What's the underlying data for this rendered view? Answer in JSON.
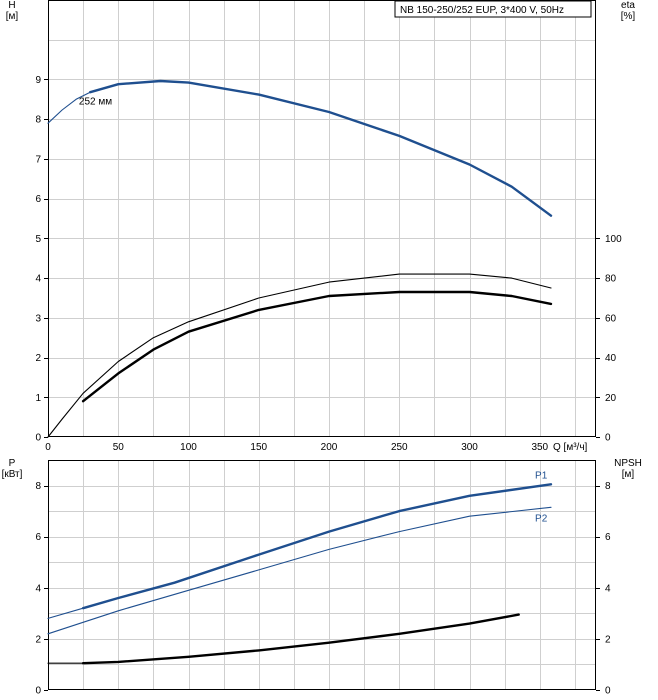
{
  "colors": {
    "blue": "#1f4f8f",
    "black": "#000000",
    "grid": "#cfcfcf",
    "frame": "#000000"
  },
  "legend_box": "NB 150-250/252 EUP, 3*400 V, 50Hz",
  "chart_data": [
    {
      "type": "line",
      "title": "",
      "xlabel": "Q [м³/ч]",
      "xlim": [
        0,
        390
      ],
      "x_ticks": [
        0,
        50,
        100,
        150,
        200,
        250,
        300,
        350
      ],
      "y_left": {
        "label": "H",
        "unit": "[м]",
        "lim": [
          0,
          11
        ],
        "ticks": [
          0,
          1,
          2,
          3,
          4,
          5,
          6,
          7,
          8,
          9
        ]
      },
      "y_right": {
        "label": "eta",
        "unit": "[%]",
        "lim": [
          0,
          220
        ],
        "ticks": [
          0,
          20,
          40,
          60,
          80,
          100
        ]
      },
      "grid": true,
      "series": [
        {
          "name": "252 мм",
          "axis": "left",
          "color": "#1f4f8f",
          "style": "thin",
          "x": [
            0,
            10,
            20,
            30
          ],
          "y": [
            7.9,
            8.23,
            8.5,
            8.68
          ]
        },
        {
          "name": "252 мм",
          "axis": "left",
          "color": "#1f4f8f",
          "style": "thick",
          "x": [
            30,
            50,
            80,
            100,
            150,
            200,
            250,
            300,
            330,
            358
          ],
          "y": [
            8.68,
            8.88,
            8.96,
            8.92,
            8.62,
            8.18,
            7.58,
            6.86,
            6.3,
            5.57
          ]
        },
        {
          "name": "",
          "axis": "right",
          "color": "#000000",
          "style": "thin",
          "x": [
            0,
            10,
            25,
            50,
            75,
            100,
            150,
            200,
            250,
            300,
            330,
            358
          ],
          "y": [
            0,
            9,
            22,
            38,
            50,
            58,
            70,
            78,
            82,
            82,
            80,
            75
          ]
        },
        {
          "name": "",
          "axis": "right",
          "color": "#000000",
          "style": "thick",
          "x": [
            25,
            50,
            75,
            100,
            150,
            200,
            250,
            300,
            330,
            358
          ],
          "y": [
            18,
            32,
            44,
            53,
            64,
            71,
            73,
            73,
            71,
            67
          ]
        }
      ],
      "annotations": [
        {
          "text": "252 мм",
          "x": 22,
          "y": 8.45
        }
      ]
    },
    {
      "type": "line",
      "title": "",
      "xlabel": "",
      "xlim": [
        0,
        390
      ],
      "x_ticks": [
        0,
        50,
        100,
        150,
        200,
        250,
        300,
        350
      ],
      "y_left": {
        "label": "P",
        "unit": "[кВт]",
        "lim": [
          0,
          9
        ],
        "ticks": [
          0,
          2,
          4,
          6,
          8
        ]
      },
      "y_right": {
        "label": "NPSH",
        "unit": "[м]",
        "lim": [
          0,
          9
        ],
        "ticks": [
          0,
          2,
          4,
          6,
          8
        ]
      },
      "grid": true,
      "series": [
        {
          "name": "",
          "axis": "left",
          "color": "#1f4f8f",
          "style": "thin",
          "x": [
            0,
            25
          ],
          "y": [
            2.8,
            3.2
          ]
        },
        {
          "name": "P1",
          "axis": "left",
          "color": "#1f4f8f",
          "style": "thick",
          "x": [
            25,
            50,
            90,
            150,
            200,
            250,
            300,
            358
          ],
          "y": [
            3.2,
            3.6,
            4.2,
            5.3,
            6.2,
            7.0,
            7.6,
            8.05
          ]
        },
        {
          "name": "P2",
          "axis": "left",
          "color": "#1f4f8f",
          "style": "thin",
          "x": [
            0,
            25,
            50,
            100,
            150,
            200,
            250,
            300,
            358
          ],
          "y": [
            2.2,
            2.65,
            3.1,
            3.9,
            4.7,
            5.5,
            6.2,
            6.8,
            7.15
          ]
        },
        {
          "name": "",
          "axis": "right",
          "color": "#000000",
          "style": "thin",
          "x": [
            0,
            25
          ],
          "y": [
            1.05,
            1.05
          ]
        },
        {
          "name": "",
          "axis": "right",
          "color": "#000000",
          "style": "thick",
          "x": [
            25,
            50,
            100,
            150,
            200,
            250,
            300,
            335
          ],
          "y": [
            1.05,
            1.1,
            1.3,
            1.55,
            1.85,
            2.2,
            2.6,
            2.95
          ]
        }
      ]
    }
  ]
}
